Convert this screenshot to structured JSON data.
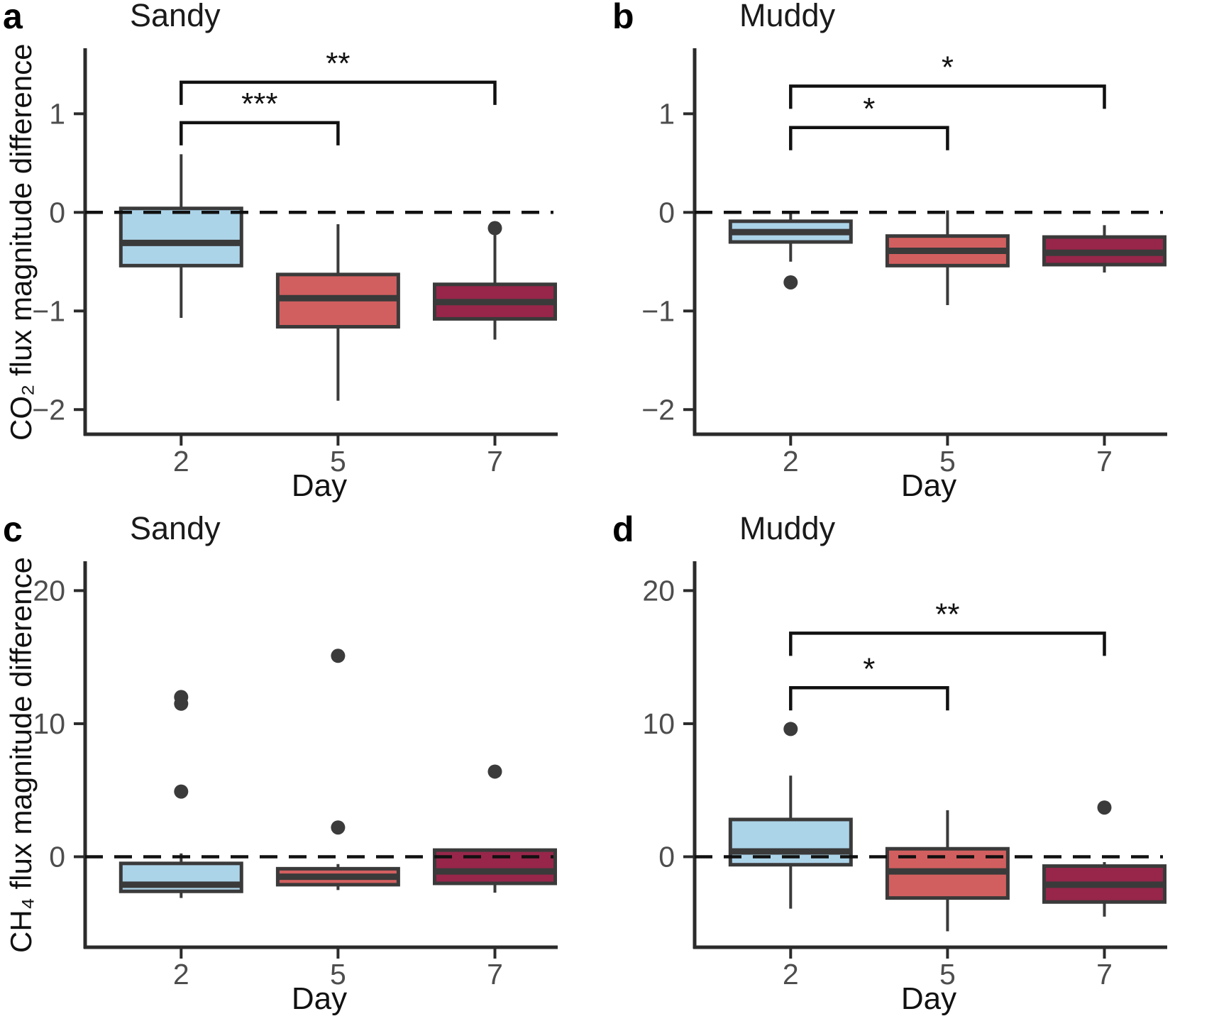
{
  "figure": {
    "style": {
      "background": "#ffffff",
      "axis_color": "#2b2b2b",
      "box_stroke": "#3a3a3a",
      "tick_label_color": "#4d4d4d",
      "text_color": "#111111",
      "outlier_color": "#3b3b3b",
      "zero_line_color": "#111111",
      "fills": {
        "day2": "#ACD4E9",
        "day5": "#D25F5F",
        "day7": "#97264A"
      }
    }
  },
  "chart_data": [
    {
      "type": "boxplot",
      "panel": "a",
      "letter": "a",
      "title": "Sandy",
      "xlabel": "Day",
      "ylabel": "CO₂ flux magnitude difference",
      "categories": [
        "2",
        "5",
        "7"
      ],
      "ylim": [
        -2.25,
        1.65
      ],
      "yticks": [
        1,
        0,
        -1,
        -2
      ],
      "zero_line_dashed": true,
      "grid": false,
      "boxes": [
        {
          "day": "2",
          "fill": "day2",
          "whisker_low": -1.07,
          "q1": -0.54,
          "median": -0.31,
          "q3": 0.04,
          "whisker_high": 0.59,
          "outliers": []
        },
        {
          "day": "5",
          "fill": "day5",
          "whisker_low": -1.91,
          "q1": -1.16,
          "median": -0.87,
          "q3": -0.63,
          "whisker_high": -0.12,
          "outliers": []
        },
        {
          "day": "7",
          "fill": "day7",
          "whisker_low": -1.29,
          "q1": -1.08,
          "median": -0.91,
          "q3": -0.73,
          "whisker_high": -0.23,
          "outliers": [
            -0.16
          ]
        }
      ],
      "significance_brackets": [
        {
          "from_day": "2",
          "to_day": "5",
          "y": 0.91,
          "label": "***"
        },
        {
          "from_day": "2",
          "to_day": "7",
          "y": 1.32,
          "label": "**"
        }
      ]
    },
    {
      "type": "boxplot",
      "panel": "b",
      "letter": "b",
      "title": "Muddy",
      "xlabel": "Day",
      "ylabel": "",
      "categories": [
        "2",
        "5",
        "7"
      ],
      "ylim": [
        -2.25,
        1.65
      ],
      "yticks": [
        1,
        0,
        -1,
        -2
      ],
      "zero_line_dashed": true,
      "grid": false,
      "boxes": [
        {
          "day": "2",
          "fill": "day2",
          "whisker_low": -0.5,
          "q1": -0.3,
          "median": -0.2,
          "q3": -0.09,
          "whisker_high": 0.01,
          "outliers": [
            -0.71
          ]
        },
        {
          "day": "5",
          "fill": "day5",
          "whisker_low": -0.94,
          "q1": -0.54,
          "median": -0.39,
          "q3": -0.24,
          "whisker_high": 0.02,
          "outliers": []
        },
        {
          "day": "7",
          "fill": "day7",
          "whisker_low": -0.61,
          "q1": -0.53,
          "median": -0.41,
          "q3": -0.25,
          "whisker_high": -0.13,
          "outliers": []
        }
      ],
      "significance_brackets": [
        {
          "from_day": "2",
          "to_day": "5",
          "y": 0.86,
          "label": "*"
        },
        {
          "from_day": "2",
          "to_day": "7",
          "y": 1.28,
          "label": "*"
        }
      ]
    },
    {
      "type": "boxplot",
      "panel": "c",
      "letter": "c",
      "title": "Sandy",
      "xlabel": "Day",
      "ylabel": "CH₄ flux magnitude difference",
      "categories": [
        "2",
        "5",
        "7"
      ],
      "ylim": [
        -6.8,
        22.1
      ],
      "yticks": [
        20,
        10,
        0
      ],
      "zero_line_dashed": true,
      "grid": false,
      "boxes": [
        {
          "day": "2",
          "fill": "day2",
          "whisker_low": -3.1,
          "q1": -2.6,
          "median": -2.1,
          "q3": -0.5,
          "whisker_high": 0.25,
          "outliers": [
            4.9,
            11.5,
            12.0
          ]
        },
        {
          "day": "5",
          "fill": "day5",
          "whisker_low": -2.5,
          "q1": -2.1,
          "median": -1.5,
          "q3": -0.9,
          "whisker_high": -0.55,
          "outliers": [
            2.2,
            15.1
          ]
        },
        {
          "day": "7",
          "fill": "day7",
          "whisker_low": -2.7,
          "q1": -2.0,
          "median": -1.1,
          "q3": 0.5,
          "whisker_high": 0.5,
          "outliers": [
            6.4
          ]
        }
      ],
      "significance_brackets": []
    },
    {
      "type": "boxplot",
      "panel": "d",
      "letter": "d",
      "title": "Muddy",
      "xlabel": "Day",
      "ylabel": "",
      "categories": [
        "2",
        "5",
        "7"
      ],
      "ylim": [
        -6.8,
        22.1
      ],
      "yticks": [
        20,
        10,
        0
      ],
      "zero_line_dashed": true,
      "grid": false,
      "boxes": [
        {
          "day": "2",
          "fill": "day2",
          "whisker_low": -3.9,
          "q1": -0.6,
          "median": 0.4,
          "q3": 2.8,
          "whisker_high": 6.1,
          "outliers": [
            9.6
          ]
        },
        {
          "day": "5",
          "fill": "day5",
          "whisker_low": -5.6,
          "q1": -3.1,
          "median": -1.1,
          "q3": 0.6,
          "whisker_high": 3.5,
          "outliers": []
        },
        {
          "day": "7",
          "fill": "day7",
          "whisker_low": -4.5,
          "q1": -3.4,
          "median": -2.1,
          "q3": -0.7,
          "whisker_high": -0.4,
          "outliers": [
            3.7
          ]
        }
      ],
      "significance_brackets": [
        {
          "from_day": "2",
          "to_day": "5",
          "y": 12.7,
          "label": "*"
        },
        {
          "from_day": "2",
          "to_day": "7",
          "y": 16.8,
          "label": "**"
        }
      ]
    }
  ]
}
